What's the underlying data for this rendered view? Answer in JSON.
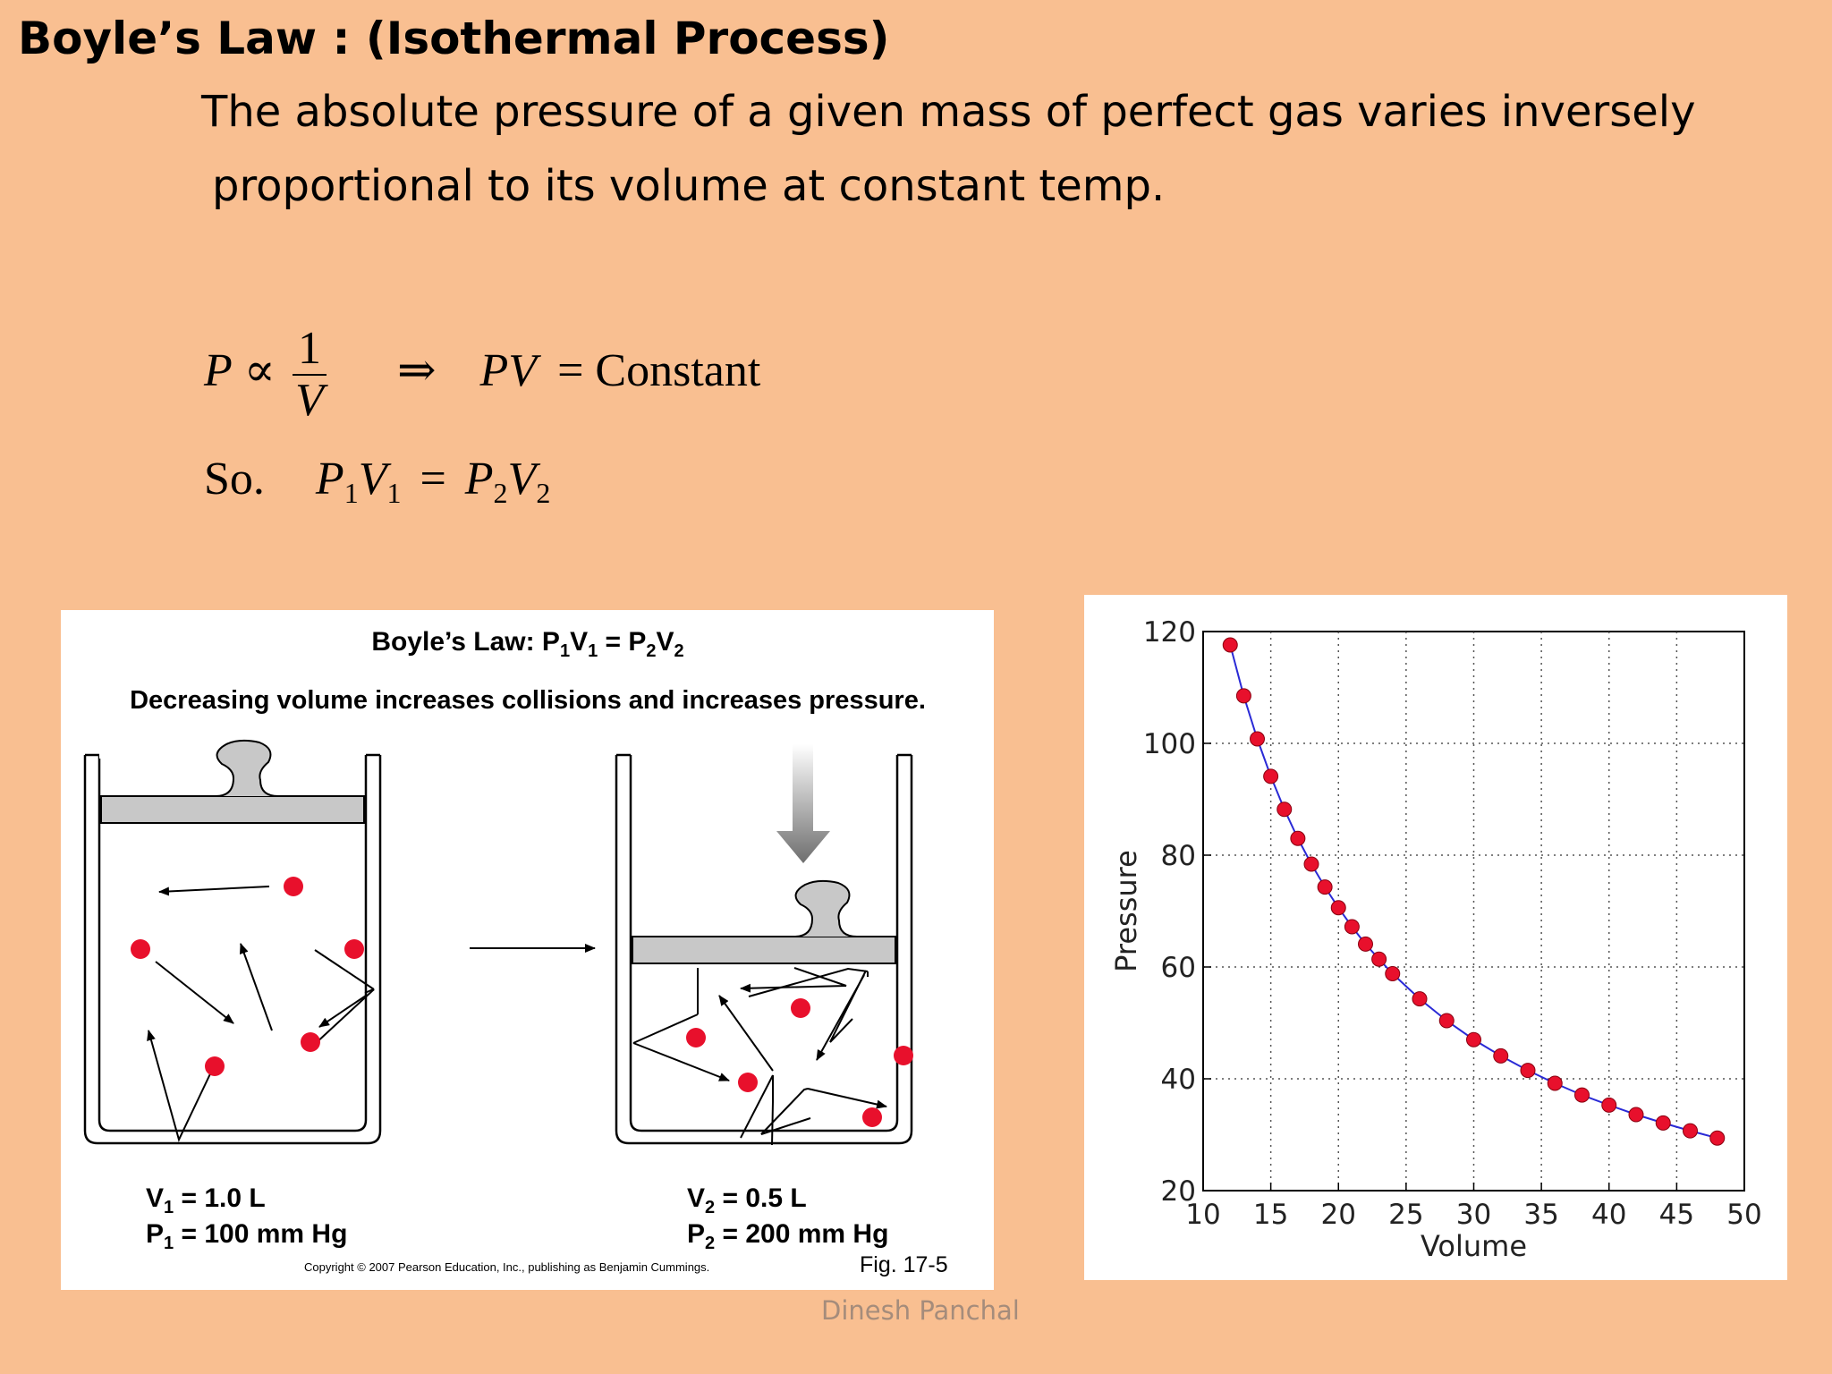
{
  "slide": {
    "title": "Boyle’s Law : (Isothermal Process)",
    "description_line_1": "The absolute pressure of a given  mass of perfect gas varies inversely",
    "description_line_2": "proportional to its volume at constant temp.",
    "author": "Dinesh Panchal"
  },
  "formula": {
    "p": "P",
    "proportional": "∝",
    "numerator": "1",
    "denominator": "V",
    "implies": "⇒",
    "pv": "PV",
    "equals": "=",
    "constant": "Constant",
    "so": "So.",
    "p1": "P",
    "sub1": "1",
    "v1": "V",
    "sub2": "1",
    "p2": "P",
    "sub3": "2",
    "v2": "V",
    "sub4": "2"
  },
  "illustration": {
    "title_main": "Boyle’s Law: P",
    "title_s1": "1",
    "title_v1": "V",
    "title_s2": "1",
    "title_eq": " = P",
    "title_s3": "2",
    "title_v2": "V",
    "title_s4": "2",
    "subtitle": "Decreasing volume increases collisions and increases pressure.",
    "left_v_label": "V",
    "left_v_sub": "1",
    "left_v_value": " = 1.0 L",
    "left_p_label": "P",
    "left_p_sub": "1",
    "left_p_value": " = 100 mm Hg",
    "right_v_label": "V",
    "right_v_sub": "2",
    "right_v_value": " = 0.5 L",
    "right_p_label": "P",
    "right_p_sub": "2",
    "right_p_value": " = 200 mm Hg",
    "copyright": "Copyright © 2007 Pearson Education, Inc., publishing as Benjamin Cummings.",
    "fig_label": "Fig. 17-5",
    "molecule_color": "#e8102c"
  },
  "chart_data": {
    "type": "line",
    "xlabel": "Volume",
    "ylabel": "Pressure",
    "xlim": [
      10,
      50
    ],
    "ylim": [
      20,
      120
    ],
    "xticks": [
      10,
      15,
      20,
      25,
      30,
      35,
      40,
      45,
      50
    ],
    "yticks": [
      20,
      40,
      60,
      80,
      100,
      120
    ],
    "grid": true,
    "line_color": "#2a2ad6",
    "marker_color": "#e8102c",
    "x": [
      12,
      13,
      14,
      15,
      16,
      17,
      18,
      19,
      20,
      21,
      22,
      23,
      24,
      26,
      28,
      30,
      32,
      34,
      36,
      38,
      40,
      42,
      44,
      46,
      48
    ],
    "y": [
      117.6,
      108.5,
      100.8,
      94.1,
      88.2,
      83.0,
      78.4,
      74.3,
      70.6,
      67.2,
      64.1,
      61.4,
      58.8,
      54.3,
      50.4,
      47.0,
      44.1,
      41.5,
      39.2,
      37.1,
      35.3,
      33.6,
      32.1,
      30.7,
      29.4
    ]
  }
}
